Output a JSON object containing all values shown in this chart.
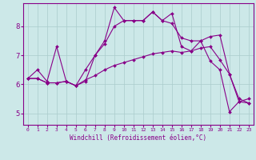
{
  "xlabel": "Windchill (Refroidissement éolien,°C)",
  "background_color": "#cce8e8",
  "line_color": "#880088",
  "grid_color": "#aacccc",
  "xlim": [
    -0.5,
    23.5
  ],
  "ylim": [
    4.6,
    8.8
  ],
  "xticks": [
    0,
    1,
    2,
    3,
    4,
    5,
    6,
    7,
    8,
    9,
    10,
    11,
    12,
    13,
    14,
    15,
    16,
    17,
    18,
    19,
    20,
    21,
    22,
    23
  ],
  "yticks": [
    5,
    6,
    7,
    8
  ],
  "series": [
    {
      "x": [
        0,
        1,
        2,
        3,
        4,
        5,
        6,
        7,
        8,
        9,
        10,
        11,
        12,
        13,
        14,
        15,
        16,
        17,
        18,
        19,
        20,
        21,
        22,
        23
      ],
      "y": [
        6.2,
        6.5,
        6.1,
        7.3,
        6.1,
        5.95,
        6.1,
        7.0,
        7.5,
        8.65,
        8.2,
        8.2,
        8.2,
        8.5,
        8.2,
        8.45,
        7.3,
        7.15,
        7.5,
        6.8,
        6.5,
        5.05,
        5.4,
        5.5
      ]
    },
    {
      "x": [
        0,
        1,
        2,
        3,
        4,
        5,
        6,
        7,
        8,
        9,
        10,
        11,
        12,
        13,
        14,
        15,
        16,
        17,
        18,
        19,
        20,
        21,
        22,
        23
      ],
      "y": [
        6.2,
        6.2,
        6.05,
        6.05,
        6.1,
        5.95,
        6.15,
        6.3,
        6.5,
        6.65,
        6.75,
        6.85,
        6.95,
        7.05,
        7.1,
        7.15,
        7.1,
        7.15,
        7.25,
        7.3,
        6.85,
        6.35,
        5.4,
        5.35
      ]
    },
    {
      "x": [
        0,
        1,
        2,
        3,
        4,
        5,
        6,
        7,
        8,
        9,
        10,
        11,
        12,
        13,
        14,
        15,
        16,
        17,
        18,
        19,
        20,
        21,
        22,
        23
      ],
      "y": [
        6.2,
        6.2,
        6.05,
        6.05,
        6.1,
        5.95,
        6.5,
        7.0,
        7.4,
        8.0,
        8.2,
        8.2,
        8.2,
        8.5,
        8.2,
        8.1,
        7.6,
        7.5,
        7.5,
        7.65,
        7.7,
        6.35,
        5.5,
        5.35
      ]
    }
  ]
}
